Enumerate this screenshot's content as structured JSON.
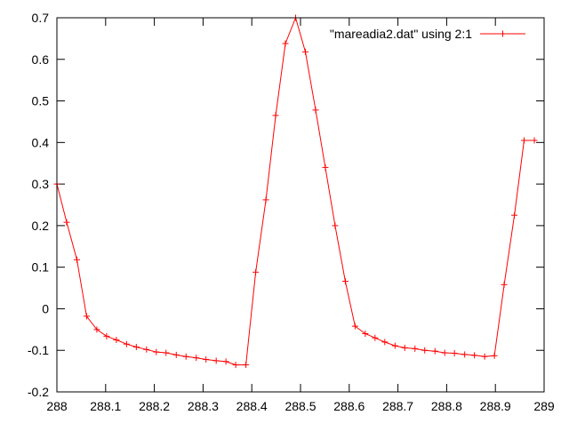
{
  "chart_data": {
    "type": "line",
    "title": "",
    "xlabel": "",
    "ylabel": "",
    "xlim": [
      288,
      289
    ],
    "ylim": [
      -0.2,
      0.7
    ],
    "grid": false,
    "legend_position": "top-right",
    "x_ticks": [
      {
        "value": 288.0,
        "label": "288"
      },
      {
        "value": 288.1,
        "label": "288.1"
      },
      {
        "value": 288.2,
        "label": "288.2"
      },
      {
        "value": 288.3,
        "label": "288.3"
      },
      {
        "value": 288.4,
        "label": "288.4"
      },
      {
        "value": 288.5,
        "label": "288.5"
      },
      {
        "value": 288.6,
        "label": "288.6"
      },
      {
        "value": 288.7,
        "label": "288.7"
      },
      {
        "value": 288.8,
        "label": "288.8"
      },
      {
        "value": 288.9,
        "label": "288.9"
      },
      {
        "value": 289.0,
        "label": "289"
      }
    ],
    "y_ticks": [
      {
        "value": -0.2,
        "label": "-0.2"
      },
      {
        "value": -0.1,
        "label": "-0.1"
      },
      {
        "value": 0.0,
        "label": "0"
      },
      {
        "value": 0.1,
        "label": "0.1"
      },
      {
        "value": 0.2,
        "label": "0.2"
      },
      {
        "value": 0.3,
        "label": "0.3"
      },
      {
        "value": 0.4,
        "label": "0.4"
      },
      {
        "value": 0.5,
        "label": "0.5"
      },
      {
        "value": 0.6,
        "label": "0.6"
      },
      {
        "value": 0.7,
        "label": "0.7"
      }
    ],
    "series": [
      {
        "name": "\"mareadia2.dat\" using 2:1",
        "color": "#ff0000",
        "marker": "plus",
        "x": [
          288.0,
          288.02,
          288.041,
          288.061,
          288.082,
          288.102,
          288.122,
          288.143,
          288.163,
          288.184,
          288.204,
          288.224,
          288.245,
          288.265,
          288.286,
          288.306,
          288.327,
          288.347,
          288.367,
          288.388,
          288.408,
          288.429,
          288.449,
          288.469,
          288.49,
          288.51,
          288.531,
          288.551,
          288.571,
          288.592,
          288.612,
          288.633,
          288.653,
          288.673,
          288.694,
          288.714,
          288.735,
          288.755,
          288.776,
          288.796,
          288.816,
          288.837,
          288.857,
          288.878,
          288.898,
          288.918,
          288.939,
          288.959,
          288.98
        ],
        "y": [
          0.3,
          0.208,
          0.118,
          -0.018,
          -0.05,
          -0.066,
          -0.075,
          -0.085,
          -0.092,
          -0.098,
          -0.104,
          -0.106,
          -0.111,
          -0.115,
          -0.118,
          -0.122,
          -0.125,
          -0.127,
          -0.135,
          -0.135,
          0.088,
          0.262,
          0.465,
          0.638,
          0.7,
          0.618,
          0.478,
          0.34,
          0.2,
          0.066,
          -0.042,
          -0.06,
          -0.07,
          -0.08,
          -0.089,
          -0.094,
          -0.096,
          -0.1,
          -0.102,
          -0.106,
          -0.107,
          -0.11,
          -0.112,
          -0.115,
          -0.113,
          0.058,
          0.225,
          0.405,
          0.405
        ]
      }
    ]
  }
}
